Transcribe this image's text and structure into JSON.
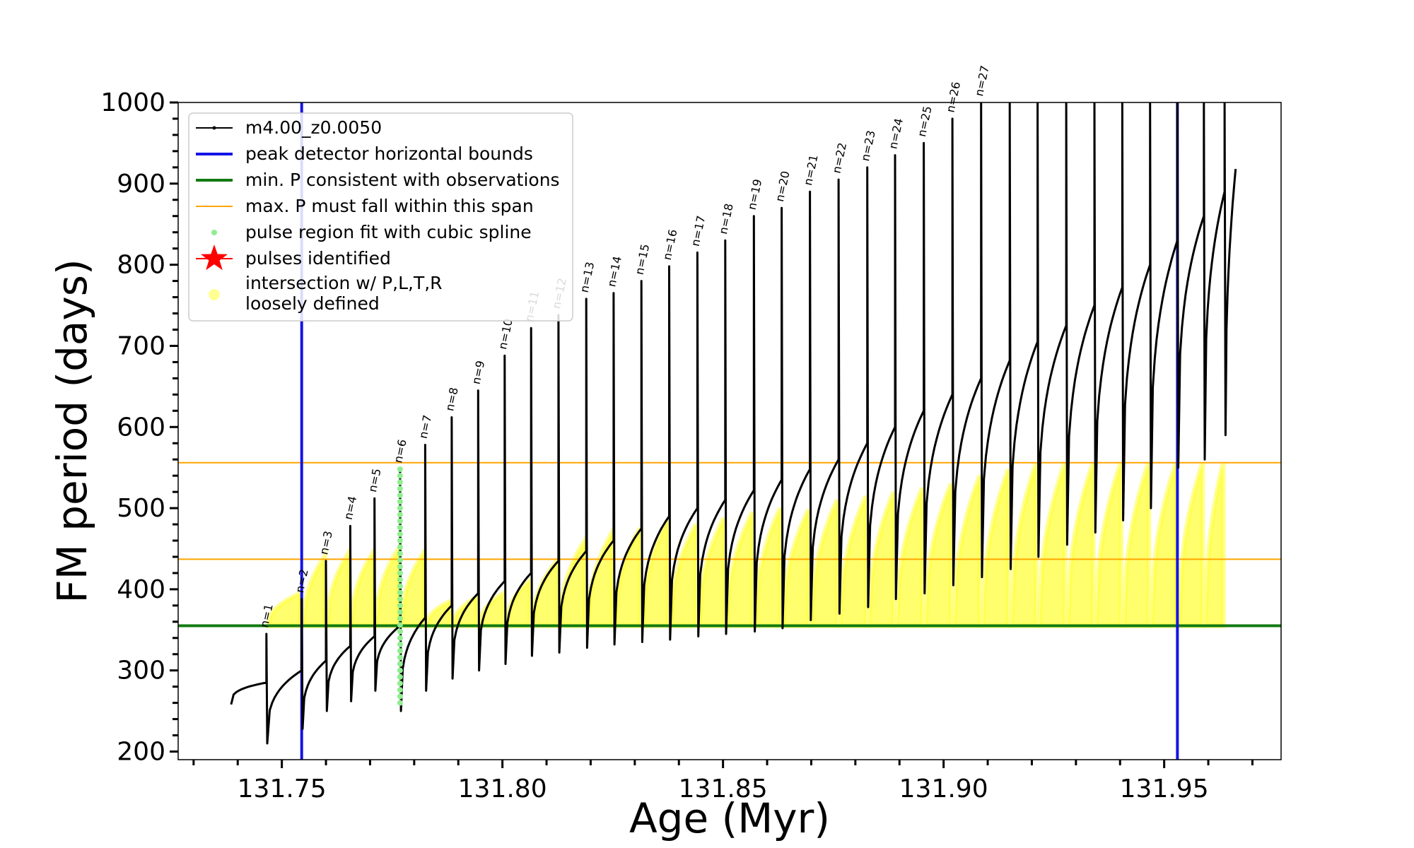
{
  "chart_data": {
    "type": "line",
    "xlabel": "Age (Myr)",
    "ylabel": "FM period (days)",
    "xlim": [
      131.7265,
      131.9765
    ],
    "ylim": [
      190,
      1000
    ],
    "x_ticks": [
      131.75,
      131.8,
      131.85,
      131.9,
      131.95
    ],
    "x_tick_labels": [
      "131.75",
      "131.80",
      "131.85",
      "131.90",
      "131.95"
    ],
    "y_ticks": [
      200,
      300,
      400,
      500,
      600,
      700,
      800,
      900,
      1000
    ],
    "y_tick_labels": [
      "200",
      "300",
      "400",
      "500",
      "600",
      "700",
      "800",
      "900",
      "1000"
    ],
    "grid": false,
    "legend_position": "top-left",
    "series": [
      {
        "name": "m4.00_z0.0050",
        "color": "#000000",
        "style": "line-with-small-markers",
        "x_start": 131.7385,
        "pulse_ages": [
          131.7465,
          131.7545,
          131.76,
          131.7655,
          131.771,
          131.7768,
          131.7825,
          131.7885,
          131.7945,
          131.8005,
          131.8065,
          131.8127,
          131.819,
          131.8252,
          131.8315,
          131.8378,
          131.8442,
          131.8505,
          131.857,
          131.8633,
          131.8697,
          131.8762,
          131.8827,
          131.889,
          131.8955,
          131.902,
          131.9085,
          131.915,
          131.9213,
          131.9278,
          131.9342,
          131.9405,
          131.9468,
          131.953,
          131.959,
          131.9637
        ],
        "pulse_peak_periods": [
          345,
          388,
          435,
          478,
          512,
          548,
          578,
          612,
          645,
          688,
          722,
          738,
          758,
          765,
          780,
          798,
          815,
          830,
          860,
          870,
          890,
          905,
          920,
          935,
          950,
          980,
          1000,
          1000,
          1000,
          1000,
          1000,
          1000,
          1000,
          1000,
          1000,
          1000
        ],
        "pre_pulse_max_periods": [
          285,
          300,
          312,
          330,
          342,
          355,
          365,
          380,
          395,
          410,
          420,
          435,
          447,
          460,
          475,
          490,
          500,
          510,
          522,
          535,
          548,
          560,
          580,
          600,
          620,
          640,
          660,
          682,
          705,
          725,
          750,
          772,
          800,
          830,
          860,
          890
        ],
        "post_pulse_min_periods": [
          210,
          228,
          250,
          262,
          275,
          250,
          275,
          290,
          300,
          308,
          318,
          322,
          328,
          332,
          335,
          338,
          342,
          345,
          348,
          352,
          362,
          370,
          378,
          388,
          395,
          405,
          415,
          425,
          440,
          455,
          470,
          485,
          500,
          550,
          560,
          590
        ],
        "end_period": 918
      },
      {
        "name": "peak detector horizontal bounds",
        "color": "#1414e6",
        "x_values": [
          131.7545,
          131.953
        ]
      },
      {
        "name": "min. P consistent with observations",
        "color": "#117a11",
        "y_value": 355
      },
      {
        "name": "max. P must fall within this span",
        "color": "#ffa500",
        "y_values": [
          437,
          556
        ]
      },
      {
        "name": "pulse region fit with cubic spline",
        "color": "#90ee90",
        "x": 131.7768,
        "y_range": [
          260,
          548
        ]
      },
      {
        "name": "pulses identified",
        "color": "#ff0000",
        "marker": "star"
      },
      {
        "name": "intersection w/ P,L,T,R\nloosely defined",
        "color": "#ffff3c",
        "marker": "circle",
        "cycle_bottom": 355,
        "cycle_tops": [
          395,
          440,
          445,
          445,
          450,
          445,
          385,
          390,
          395,
          410,
          435,
          460,
          470,
          475,
          485,
          480,
          488,
          495,
          500,
          498,
          510,
          515,
          520,
          525,
          530,
          540,
          548,
          556,
          556,
          556,
          556,
          556,
          556,
          556,
          556
        ]
      }
    ],
    "pulse_labels": [
      "n=1",
      "n=2",
      "n=3",
      "n=4",
      "n=5",
      "n=6",
      "n=7",
      "n=8",
      "n=9",
      "n=10",
      "n=11",
      "n=12",
      "n=13",
      "n=14",
      "n=15",
      "n=16",
      "n=17",
      "n=18",
      "n=19",
      "n=20",
      "n=21",
      "n=22",
      "n=23",
      "n=24",
      "n=25",
      "n=26",
      "n=27"
    ],
    "legend": [
      "m4.00_z0.0050",
      "peak detector horizontal bounds",
      "min. P consistent with observations",
      "max. P must fall within this span",
      "pulse region fit with cubic spline",
      "pulses identified",
      "intersection w/ P,L,T,R",
      "loosely defined"
    ]
  }
}
